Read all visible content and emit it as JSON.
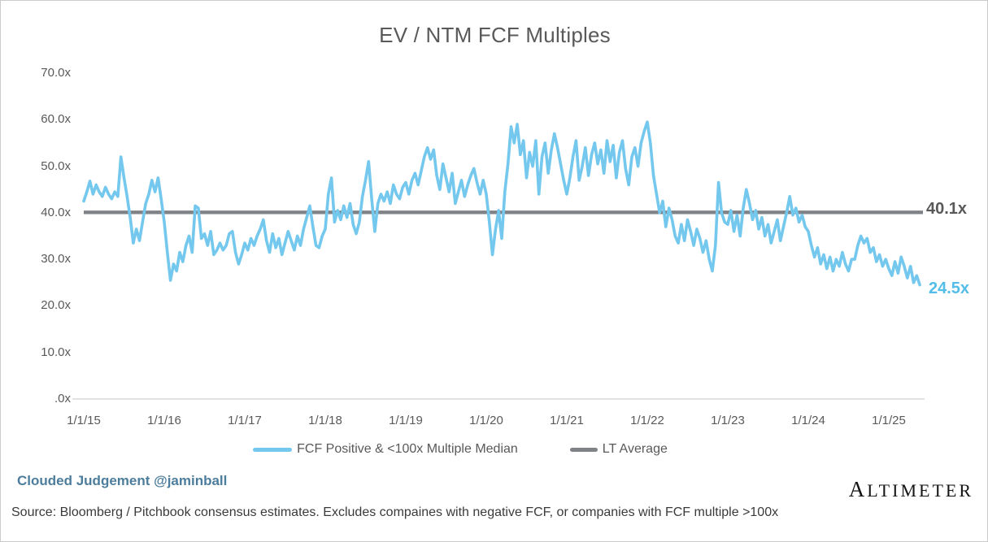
{
  "title": "EV / NTM FCF Multiples",
  "annotations": {
    "lt_average_label": "40.1x",
    "current_value_label": "24.5x"
  },
  "legend": {
    "items": [
      {
        "label": "FCF Positive & <100x Multiple Median",
        "color": "#74c8ee",
        "swatch_width": 48,
        "swatch_height": 5
      },
      {
        "label": "LT Average",
        "color": "#7f8286",
        "swatch_width": 34,
        "swatch_height": 5
      }
    ]
  },
  "footer": {
    "byline": "Clouded Judgement @jaminball",
    "source": "Source: Bloomberg / Pitchbook consensus estimates. Excludes compaines with negative FCF, or companies with FCF multiple >100x",
    "brand_first_letter": "A",
    "brand_rest": "LTIMETER"
  },
  "colors": {
    "series_blue": "#74c8ee",
    "lt_average_gray": "#7f8286",
    "axis_text": "#595959",
    "axis_line": "#d9d9d9",
    "current_label_blue": "#53bdea"
  },
  "chart_data": {
    "type": "line",
    "title": "EV / NTM FCF Multiples",
    "grid": false,
    "legend_position": "bottom",
    "ylim": [
      0,
      70
    ],
    "y_tick_labels": [
      "70.0x",
      "60.0x",
      "50.0x",
      "40.0x",
      "30.0x",
      "20.0x",
      "10.0x",
      ".0x"
    ],
    "x_tick_labels": [
      "1/1/15",
      "1/1/16",
      "1/1/17",
      "1/1/18",
      "1/1/19",
      "1/1/20",
      "1/1/21",
      "1/1/22",
      "1/1/23",
      "1/1/24",
      "1/1/25"
    ],
    "lt_average": 40.1,
    "last_value": 24.5,
    "series": [
      {
        "name": "FCF Positive & <100x Multiple Median",
        "color": "#74c8ee",
        "start_year": 2015,
        "points_per_year": 26,
        "unit": "x EV/NTM FCF",
        "values": [
          42.5,
          44.5,
          46.8,
          44.0,
          46.0,
          44.5,
          43.5,
          45.5,
          44.0,
          43.0,
          44.5,
          43.5,
          52.0,
          47.5,
          43.5,
          39.0,
          33.5,
          36.5,
          34.0,
          38.0,
          42.0,
          44.0,
          47.0,
          44.5,
          47.5,
          43.0,
          38.0,
          31.5,
          25.5,
          29.0,
          27.5,
          31.5,
          29.5,
          33.0,
          35.0,
          31.5,
          41.5,
          41.0,
          34.5,
          35.5,
          33.0,
          36.0,
          31.0,
          32.0,
          33.5,
          32.0,
          33.0,
          35.5,
          36.0,
          31.5,
          29.0,
          31.0,
          33.5,
          32.0,
          34.5,
          33.0,
          35.0,
          36.5,
          38.5,
          34.0,
          31.5,
          35.5,
          32.5,
          34.5,
          31.0,
          33.5,
          36.0,
          34.0,
          32.0,
          35.0,
          33.0,
          36.5,
          39.0,
          41.5,
          37.0,
          33.0,
          32.5,
          35.0,
          36.5,
          44.0,
          47.5,
          38.0,
          40.5,
          38.5,
          41.5,
          39.0,
          42.0,
          37.5,
          35.5,
          38.0,
          43.5,
          47.0,
          51.0,
          43.0,
          36.0,
          42.0,
          44.0,
          42.5,
          44.5,
          42.0,
          46.0,
          44.0,
          43.0,
          45.5,
          46.5,
          44.0,
          47.0,
          48.5,
          46.0,
          49.0,
          52.0,
          54.0,
          51.5,
          53.5,
          48.0,
          45.0,
          50.5,
          47.5,
          44.5,
          48.5,
          42.0,
          44.5,
          47.0,
          43.5,
          46.0,
          48.0,
          49.5,
          46.5,
          44.0,
          47.0,
          44.0,
          38.0,
          31.0,
          36.5,
          40.5,
          34.5,
          44.5,
          50.5,
          58.5,
          55.0,
          59.0,
          52.5,
          55.5,
          47.5,
          53.0,
          50.0,
          55.5,
          44.0,
          52.0,
          55.0,
          48.5,
          53.5,
          57.0,
          54.0,
          50.5,
          47.0,
          44.0,
          47.5,
          52.0,
          55.5,
          47.0,
          50.0,
          54.0,
          48.0,
          52.5,
          55.0,
          50.5,
          53.5,
          48.5,
          55.5,
          51.0,
          54.5,
          47.5,
          53.0,
          55.5,
          49.5,
          46.0,
          52.0,
          54.0,
          50.0,
          55.0,
          57.5,
          59.5,
          55.0,
          48.0,
          44.0,
          40.0,
          42.5,
          37.0,
          41.0,
          38.5,
          35.0,
          33.5,
          37.5,
          34.0,
          38.5,
          36.0,
          33.0,
          36.5,
          34.5,
          31.5,
          34.0,
          30.0,
          27.5,
          33.0,
          46.5,
          40.0,
          38.0,
          37.5,
          40.5,
          36.0,
          39.5,
          35.0,
          41.0,
          45.0,
          42.0,
          38.5,
          40.5,
          36.5,
          39.0,
          35.0,
          37.5,
          33.5,
          36.0,
          38.5,
          34.0,
          37.0,
          40.0,
          43.5,
          39.5,
          41.0,
          38.0,
          39.5,
          37.0,
          36.0,
          33.0,
          30.5,
          32.5,
          29.0,
          31.0,
          28.0,
          30.5,
          27.5,
          30.0,
          28.5,
          31.5,
          29.0,
          27.5,
          30.0,
          30.0,
          33.0,
          35.0,
          33.5,
          34.5,
          31.5,
          32.5,
          29.5,
          31.0,
          28.5,
          30.0,
          28.0,
          26.5,
          29.5,
          27.0,
          30.5,
          28.5,
          26.0,
          28.5,
          25.0,
          26.5,
          24.5
        ]
      },
      {
        "name": "LT Average",
        "color": "#7f8286",
        "value": 40.1
      }
    ]
  }
}
